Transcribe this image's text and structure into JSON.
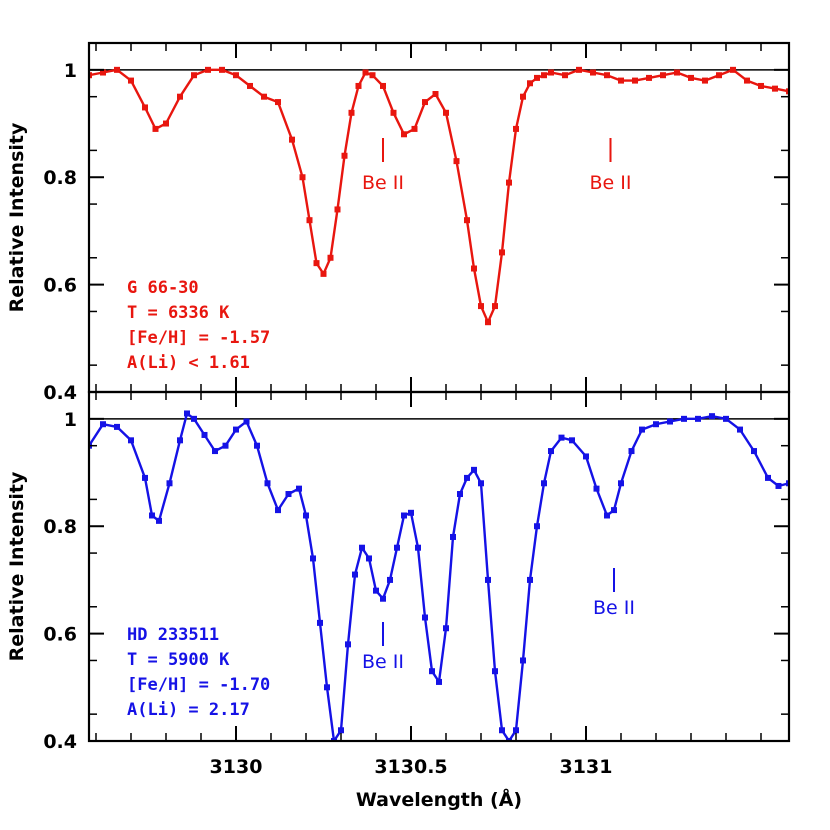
{
  "chart_data": {
    "type": "line",
    "xlabel": "Wavelength (Å)",
    "xlim": [
      3129.58,
      3131.58
    ],
    "xticks": [
      3130,
      3130.5,
      3131
    ],
    "xtick_labels": [
      "3130",
      "3130.5",
      "3131"
    ],
    "panels": [
      {
        "ylabel": "Relative Intensity",
        "ylim": [
          0.4,
          1.05
        ],
        "yticks": [
          0.4,
          0.6,
          0.8,
          1
        ],
        "ytick_labels": [
          "0.4",
          "0.6",
          "0.8",
          "1"
        ],
        "reference_line": 1,
        "color": "#e8160f",
        "annotation_lines": [
          "G 66-30",
          "T = 6336 K",
          "[Fe/H] = -1.57",
          "A(Li) < 1.61"
        ],
        "markers": [
          {
            "x": 3130.42,
            "label": "Be II"
          },
          {
            "x": 3131.07,
            "label": "Be II"
          }
        ],
        "series": [
          {
            "x": [
              3129.58,
              3129.62,
              3129.66,
              3129.7,
              3129.74,
              3129.77,
              3129.8,
              3129.84,
              3129.88,
              3129.92,
              3129.96,
              3130.0,
              3130.04,
              3130.08,
              3130.12,
              3130.16,
              3130.19,
              3130.21,
              3130.23,
              3130.25,
              3130.27,
              3130.29,
              3130.31,
              3130.33,
              3130.35,
              3130.37,
              3130.39,
              3130.42,
              3130.45,
              3130.48,
              3130.51,
              3130.54,
              3130.57,
              3130.6,
              3130.63,
              3130.66,
              3130.68,
              3130.7,
              3130.72,
              3130.74,
              3130.76,
              3130.78,
              3130.8,
              3130.82,
              3130.84,
              3130.86,
              3130.88,
              3130.9,
              3130.94,
              3130.98,
              3131.02,
              3131.06,
              3131.1,
              3131.14,
              3131.18,
              3131.22,
              3131.26,
              3131.3,
              3131.34,
              3131.38,
              3131.42,
              3131.46,
              3131.5,
              3131.54,
              3131.58
            ],
            "values": [
              0.99,
              0.995,
              1.0,
              0.98,
              0.93,
              0.89,
              0.9,
              0.95,
              0.99,
              1.0,
              1.0,
              0.99,
              0.97,
              0.95,
              0.94,
              0.87,
              0.8,
              0.72,
              0.64,
              0.62,
              0.65,
              0.74,
              0.84,
              0.92,
              0.97,
              0.995,
              0.99,
              0.97,
              0.92,
              0.88,
              0.89,
              0.94,
              0.955,
              0.92,
              0.83,
              0.72,
              0.63,
              0.56,
              0.53,
              0.56,
              0.66,
              0.79,
              0.89,
              0.95,
              0.975,
              0.985,
              0.99,
              0.995,
              0.99,
              1.0,
              0.995,
              0.99,
              0.98,
              0.98,
              0.985,
              0.99,
              0.995,
              0.985,
              0.98,
              0.99,
              1.0,
              0.98,
              0.97,
              0.965,
              0.96
            ]
          }
        ]
      },
      {
        "ylabel": "Relative Intensity",
        "ylim": [
          0.4,
          1.05
        ],
        "yticks": [
          0.4,
          0.6,
          0.8,
          1
        ],
        "ytick_labels": [
          "0.4",
          "0.6",
          "0.8",
          "1"
        ],
        "reference_line": 1,
        "color": "#1512e6",
        "annotation_lines": [
          "HD 233511",
          "T = 5900 K",
          "[Fe/H] = -1.70",
          "A(Li) = 2.17"
        ],
        "markers": [
          {
            "x": 3130.42,
            "label": "Be II"
          },
          {
            "x": 3131.08,
            "label": "Be II"
          }
        ],
        "series": [
          {
            "x": [
              3129.58,
              3129.62,
              3129.66,
              3129.7,
              3129.74,
              3129.76,
              3129.78,
              3129.81,
              3129.84,
              3129.86,
              3129.88,
              3129.91,
              3129.94,
              3129.97,
              3130.0,
              3130.03,
              3130.06,
              3130.09,
              3130.12,
              3130.15,
              3130.18,
              3130.2,
              3130.22,
              3130.24,
              3130.26,
              3130.28,
              3130.3,
              3130.32,
              3130.34,
              3130.36,
              3130.38,
              3130.4,
              3130.42,
              3130.44,
              3130.46,
              3130.48,
              3130.5,
              3130.52,
              3130.54,
              3130.56,
              3130.58,
              3130.6,
              3130.62,
              3130.64,
              3130.66,
              3130.68,
              3130.7,
              3130.72,
              3130.74,
              3130.76,
              3130.78,
              3130.8,
              3130.82,
              3130.84,
              3130.86,
              3130.88,
              3130.9,
              3130.93,
              3130.96,
              3131.0,
              3131.03,
              3131.06,
              3131.08,
              3131.1,
              3131.13,
              3131.16,
              3131.2,
              3131.24,
              3131.28,
              3131.32,
              3131.36,
              3131.4,
              3131.44,
              3131.48,
              3131.52,
              3131.55,
              3131.58
            ],
            "values": [
              0.95,
              0.99,
              0.985,
              0.96,
              0.89,
              0.82,
              0.81,
              0.88,
              0.96,
              1.01,
              1.0,
              0.97,
              0.94,
              0.95,
              0.98,
              0.995,
              0.95,
              0.88,
              0.83,
              0.86,
              0.87,
              0.82,
              0.74,
              0.62,
              0.5,
              0.4,
              0.42,
              0.58,
              0.71,
              0.76,
              0.74,
              0.68,
              0.665,
              0.7,
              0.76,
              0.82,
              0.825,
              0.76,
              0.63,
              0.53,
              0.51,
              0.61,
              0.78,
              0.86,
              0.89,
              0.905,
              0.88,
              0.7,
              0.53,
              0.42,
              0.4,
              0.42,
              0.55,
              0.7,
              0.8,
              0.88,
              0.94,
              0.965,
              0.96,
              0.93,
              0.87,
              0.82,
              0.83,
              0.88,
              0.94,
              0.98,
              0.99,
              0.995,
              1.0,
              1.0,
              1.005,
              1.0,
              0.98,
              0.94,
              0.89,
              0.875,
              0.88
            ]
          }
        ]
      }
    ]
  }
}
